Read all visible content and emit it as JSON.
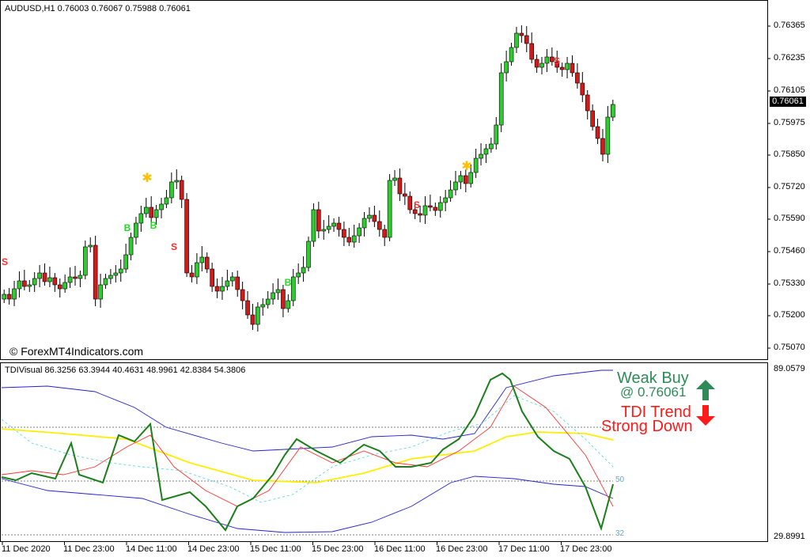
{
  "main_panel": {
    "title": "AUDUSD,H1  0.76003 0.76067 0.75988 0.76061",
    "watermark": "© ForexMT4Indicators.com",
    "price_axis": [
      "0.76365",
      "0.76235",
      "0.76105",
      "0.75975",
      "0.75850",
      "0.75720",
      "0.75590",
      "0.75460",
      "0.75330",
      "0.75200",
      "0.75070"
    ],
    "current_price": "0.76061",
    "signals": [
      {
        "label": "S",
        "color": "#ff2b2b"
      },
      {
        "label": "B",
        "color": "#22dd22"
      },
      {
        "label": "B",
        "color": "#22dd22"
      },
      {
        "label": "S",
        "color": "#ff2b2b"
      },
      {
        "label": "B",
        "color": "#22dd22"
      },
      {
        "label": "S",
        "color": "#ff2b2b"
      },
      {
        "label": "S",
        "color": "#ff2b2b"
      }
    ],
    "star_color": "#ffc000"
  },
  "tdi_panel": {
    "title": "TDIVisual 86.3256 63.3944 40.4631 48.9961 42.8384 54.3806",
    "axis_top": "89.0579",
    "axis_bottom": "29.8991",
    "level_50": "50",
    "level_32": "32",
    "signal_text": "Weak Buy",
    "signal_price": "@ 0.76061",
    "trend_label": "TDI Trend",
    "trend_value": "Strong Down",
    "colors": {
      "price_line": "#1a7f1a",
      "signal_line": "#ff3333",
      "market_base": "#ffee00",
      "band": "#2222cc",
      "trend_up": "#2e8b57",
      "trend_down": "#ff1a1a"
    }
  },
  "time_axis": [
    "11 Dec 2020",
    "11 Dec 23:00",
    "14 Dec 11:00",
    "14 Dec 23:00",
    "15 Dec 11:00",
    "15 Dec 23:00",
    "16 Dec 11:00",
    "16 Dec 23:00",
    "17 Dec 11:00",
    "17 Dec 23:00"
  ]
}
